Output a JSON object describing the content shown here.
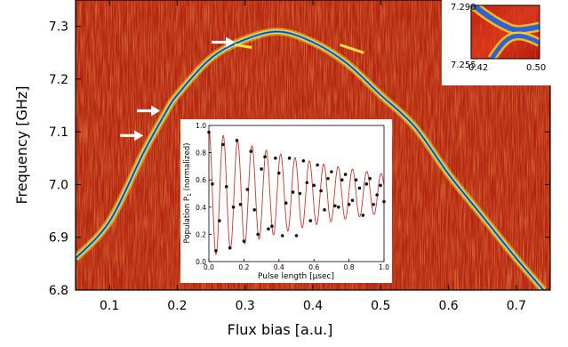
{
  "chart_data": [
    {
      "type": "heatmap",
      "xlabel": "Flux bias [a.u.]",
      "ylabel": "Frequency [GHz]",
      "xlim": [
        0.05,
        0.75
      ],
      "ylim": [
        6.8,
        7.35
      ],
      "xticks": [
        "0.1",
        "0.2",
        "0.3",
        "0.4",
        "0.5",
        "0.6",
        "0.7"
      ],
      "yticks": [
        "6.8",
        "6.9",
        "7.0",
        "7.1",
        "7.2",
        "7.3"
      ],
      "colormap": "jet",
      "resonance": {
        "peak_x": 0.35,
        "peak_y": 7.29,
        "points": [
          [
            0.05,
            6.86
          ],
          [
            0.1,
            6.93
          ],
          [
            0.15,
            7.06
          ],
          [
            0.18,
            7.13
          ],
          [
            0.2,
            7.17
          ],
          [
            0.25,
            7.24
          ],
          [
            0.3,
            7.275
          ],
          [
            0.35,
            7.29
          ],
          [
            0.4,
            7.27
          ],
          [
            0.45,
            7.23
          ],
          [
            0.5,
            7.17
          ],
          [
            0.55,
            7.11
          ],
          [
            0.6,
            7.02
          ],
          [
            0.65,
            6.94
          ],
          [
            0.7,
            6.86
          ],
          [
            0.74,
            6.8
          ]
        ]
      },
      "arrows": [
        {
          "x": 0.155,
          "y": 7.093
        },
        {
          "x": 0.18,
          "y": 7.14
        },
        {
          "x": 0.29,
          "y": 7.27
        }
      ]
    },
    {
      "type": "heatmap",
      "role": "zoom inset",
      "xticks": [
        "0.42",
        "0.50"
      ],
      "yticks": [
        "7.290",
        "7.255"
      ],
      "xlim": [
        0.42,
        0.5
      ],
      "ylim": [
        7.255,
        7.29
      ]
    },
    {
      "type": "scatter",
      "role": "Rabi oscillation inset",
      "xlabel": "Pulse length [µsec]",
      "ylabel": "Population P",
      "ylabel_sub": "1",
      "ylabel_suffix": " (normalized)",
      "xlim": [
        0,
        1
      ],
      "ylim": [
        0,
        1
      ],
      "xticks": [
        "0.0",
        "0.2",
        "0.4",
        "0.6",
        "0.8",
        "1.0"
      ],
      "yticks": [
        "0.0",
        "0.2",
        "0.4",
        "0.6",
        "0.8",
        "1.0"
      ],
      "fit_color": "#c0392b",
      "points": [
        [
          0.0,
          0.95
        ],
        [
          0.02,
          0.57
        ],
        [
          0.04,
          0.08
        ],
        [
          0.06,
          0.3
        ],
        [
          0.08,
          0.86
        ],
        [
          0.1,
          0.55
        ],
        [
          0.12,
          0.1
        ],
        [
          0.14,
          0.4
        ],
        [
          0.16,
          0.89
        ],
        [
          0.18,
          0.42
        ],
        [
          0.2,
          0.15
        ],
        [
          0.22,
          0.53
        ],
        [
          0.24,
          0.81
        ],
        [
          0.26,
          0.38
        ],
        [
          0.28,
          0.2
        ],
        [
          0.3,
          0.68
        ],
        [
          0.32,
          0.77
        ],
        [
          0.34,
          0.24
        ],
        [
          0.36,
          0.26
        ],
        [
          0.38,
          0.76
        ],
        [
          0.4,
          0.65
        ],
        [
          0.42,
          0.19
        ],
        [
          0.44,
          0.43
        ],
        [
          0.46,
          0.76
        ],
        [
          0.48,
          0.51
        ],
        [
          0.5,
          0.19
        ],
        [
          0.52,
          0.5
        ],
        [
          0.54,
          0.74
        ],
        [
          0.56,
          0.58
        ],
        [
          0.58,
          0.3
        ],
        [
          0.6,
          0.56
        ],
        [
          0.62,
          0.71
        ],
        [
          0.64,
          0.52
        ],
        [
          0.66,
          0.38
        ],
        [
          0.68,
          0.61
        ],
        [
          0.7,
          0.66
        ],
        [
          0.72,
          0.41
        ],
        [
          0.74,
          0.4
        ],
        [
          0.76,
          0.6
        ],
        [
          0.78,
          0.64
        ],
        [
          0.8,
          0.42
        ],
        [
          0.82,
          0.45
        ],
        [
          0.84,
          0.6
        ],
        [
          0.86,
          0.54
        ],
        [
          0.88,
          0.34
        ],
        [
          0.9,
          0.57
        ],
        [
          0.92,
          0.61
        ],
        [
          0.94,
          0.42
        ],
        [
          0.96,
          0.49
        ],
        [
          0.98,
          0.56
        ],
        [
          1.0,
          0.44
        ]
      ]
    }
  ]
}
